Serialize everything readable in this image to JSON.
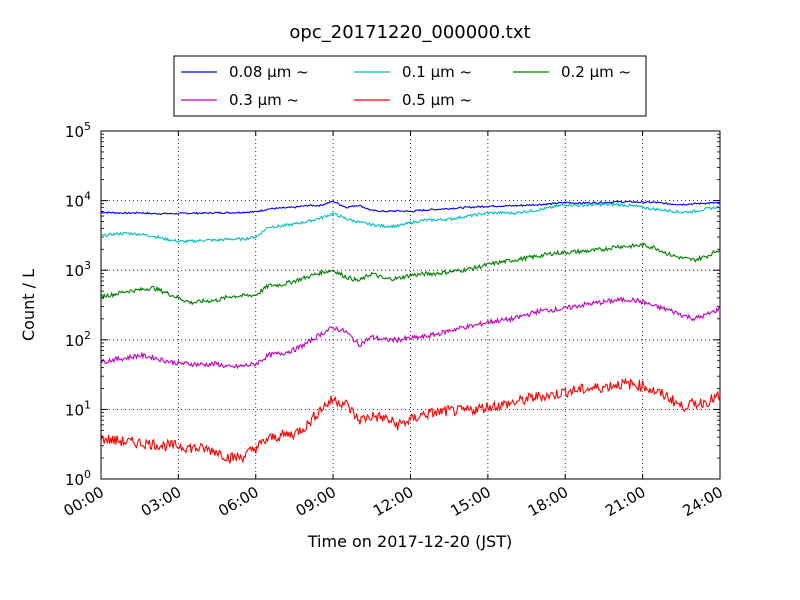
{
  "chart_data": {
    "type": "line",
    "title": "opc_20171220_000000.txt",
    "xlabel": "Time on 2017-12-20 (JST)",
    "ylabel": "Count / L",
    "yscale": "log",
    "xlim": [
      "00:00",
      "24:00"
    ],
    "ylim": [
      1,
      100000
    ],
    "grid": true,
    "legend_position": "top-outside",
    "x_ticks": [
      "00:00",
      "03:00",
      "06:00",
      "09:00",
      "12:00",
      "15:00",
      "18:00",
      "21:00",
      "24:00"
    ],
    "y_ticks": [
      {
        "base": "10",
        "exp": "0"
      },
      {
        "base": "10",
        "exp": "1"
      },
      {
        "base": "10",
        "exp": "2"
      },
      {
        "base": "10",
        "exp": "3"
      },
      {
        "base": "10",
        "exp": "4"
      },
      {
        "base": "10",
        "exp": "5"
      }
    ],
    "x": [
      "00:00",
      "00:30",
      "01:00",
      "01:30",
      "02:00",
      "02:30",
      "03:00",
      "03:30",
      "04:00",
      "04:30",
      "05:00",
      "05:30",
      "06:00",
      "06:30",
      "07:00",
      "07:30",
      "08:00",
      "08:30",
      "09:00",
      "09:30",
      "10:00",
      "10:30",
      "11:00",
      "11:30",
      "12:00",
      "12:30",
      "13:00",
      "13:30",
      "14:00",
      "14:30",
      "15:00",
      "15:30",
      "16:00",
      "16:30",
      "17:00",
      "17:30",
      "18:00",
      "18:30",
      "19:00",
      "19:30",
      "20:00",
      "20:30",
      "21:00",
      "21:30",
      "22:00",
      "22:30",
      "23:00",
      "23:30",
      "24:00"
    ],
    "series": [
      {
        "name": "0.08 μm ~",
        "color": "#0000ff",
        "values": [
          6800,
          6700,
          6600,
          6700,
          6500,
          6500,
          6500,
          6600,
          6600,
          6700,
          6700,
          6800,
          6900,
          7600,
          7800,
          8000,
          8500,
          8500,
          9800,
          8000,
          8600,
          7200,
          7000,
          7100,
          7000,
          7300,
          7500,
          7700,
          7900,
          8100,
          8300,
          8400,
          8400,
          8600,
          8800,
          9000,
          9400,
          9200,
          9300,
          9400,
          9600,
          9600,
          9500,
          9400,
          9000,
          8800,
          9000,
          9200,
          9300
        ]
      },
      {
        "name": "0.1 μm ~",
        "color": "#00bfbf",
        "values": [
          3100,
          3300,
          3400,
          3300,
          3100,
          2800,
          2600,
          2600,
          2700,
          2700,
          2800,
          2800,
          3000,
          4200,
          4300,
          4600,
          5000,
          5600,
          6500,
          5500,
          4900,
          4500,
          4300,
          4300,
          4800,
          5200,
          5300,
          5400,
          5800,
          6200,
          6600,
          6700,
          6600,
          7000,
          7400,
          8000,
          8800,
          8500,
          8700,
          8800,
          8800,
          8500,
          8000,
          7500,
          7200,
          6800,
          7000,
          7600,
          8200
        ]
      },
      {
        "name": "0.2 μm ~",
        "color": "#008000",
        "values": [
          420,
          450,
          500,
          520,
          560,
          480,
          400,
          340,
          360,
          370,
          420,
          430,
          440,
          600,
          620,
          700,
          800,
          920,
          1000,
          800,
          700,
          900,
          750,
          760,
          850,
          880,
          900,
          950,
          1000,
          1080,
          1200,
          1300,
          1400,
          1500,
          1600,
          1750,
          1800,
          1850,
          1900,
          2000,
          2200,
          2200,
          2300,
          2100,
          1700,
          1500,
          1400,
          1600,
          2000
        ]
      },
      {
        "name": "0.3 μm ~",
        "color": "#bf00bf",
        "values": [
          48,
          52,
          55,
          60,
          56,
          50,
          46,
          45,
          44,
          45,
          40,
          42,
          45,
          60,
          64,
          72,
          90,
          120,
          150,
          130,
          85,
          110,
          100,
          100,
          105,
          110,
          120,
          135,
          150,
          160,
          180,
          190,
          200,
          230,
          260,
          270,
          280,
          310,
          330,
          350,
          370,
          380,
          350,
          300,
          270,
          230,
          200,
          230,
          280
        ]
      },
      {
        "name": "0.5 μm ~",
        "color": "#ff0000",
        "values": [
          3.8,
          3.6,
          3.4,
          3.3,
          3.2,
          3.0,
          3.0,
          2.8,
          2.7,
          2.5,
          2.0,
          2.1,
          2.8,
          3.8,
          4.2,
          4.5,
          6.0,
          10.0,
          14.0,
          12.0,
          7.0,
          8.0,
          7.5,
          6.0,
          7.0,
          8.5,
          9.0,
          9.5,
          9.5,
          10.0,
          11.0,
          11.5,
          12.5,
          14.0,
          15.5,
          16.0,
          18.0,
          19.0,
          20.0,
          21.0,
          23.0,
          23.0,
          22.0,
          18.0,
          15.0,
          11.0,
          12.0,
          13.0,
          15.5
        ]
      }
    ]
  }
}
